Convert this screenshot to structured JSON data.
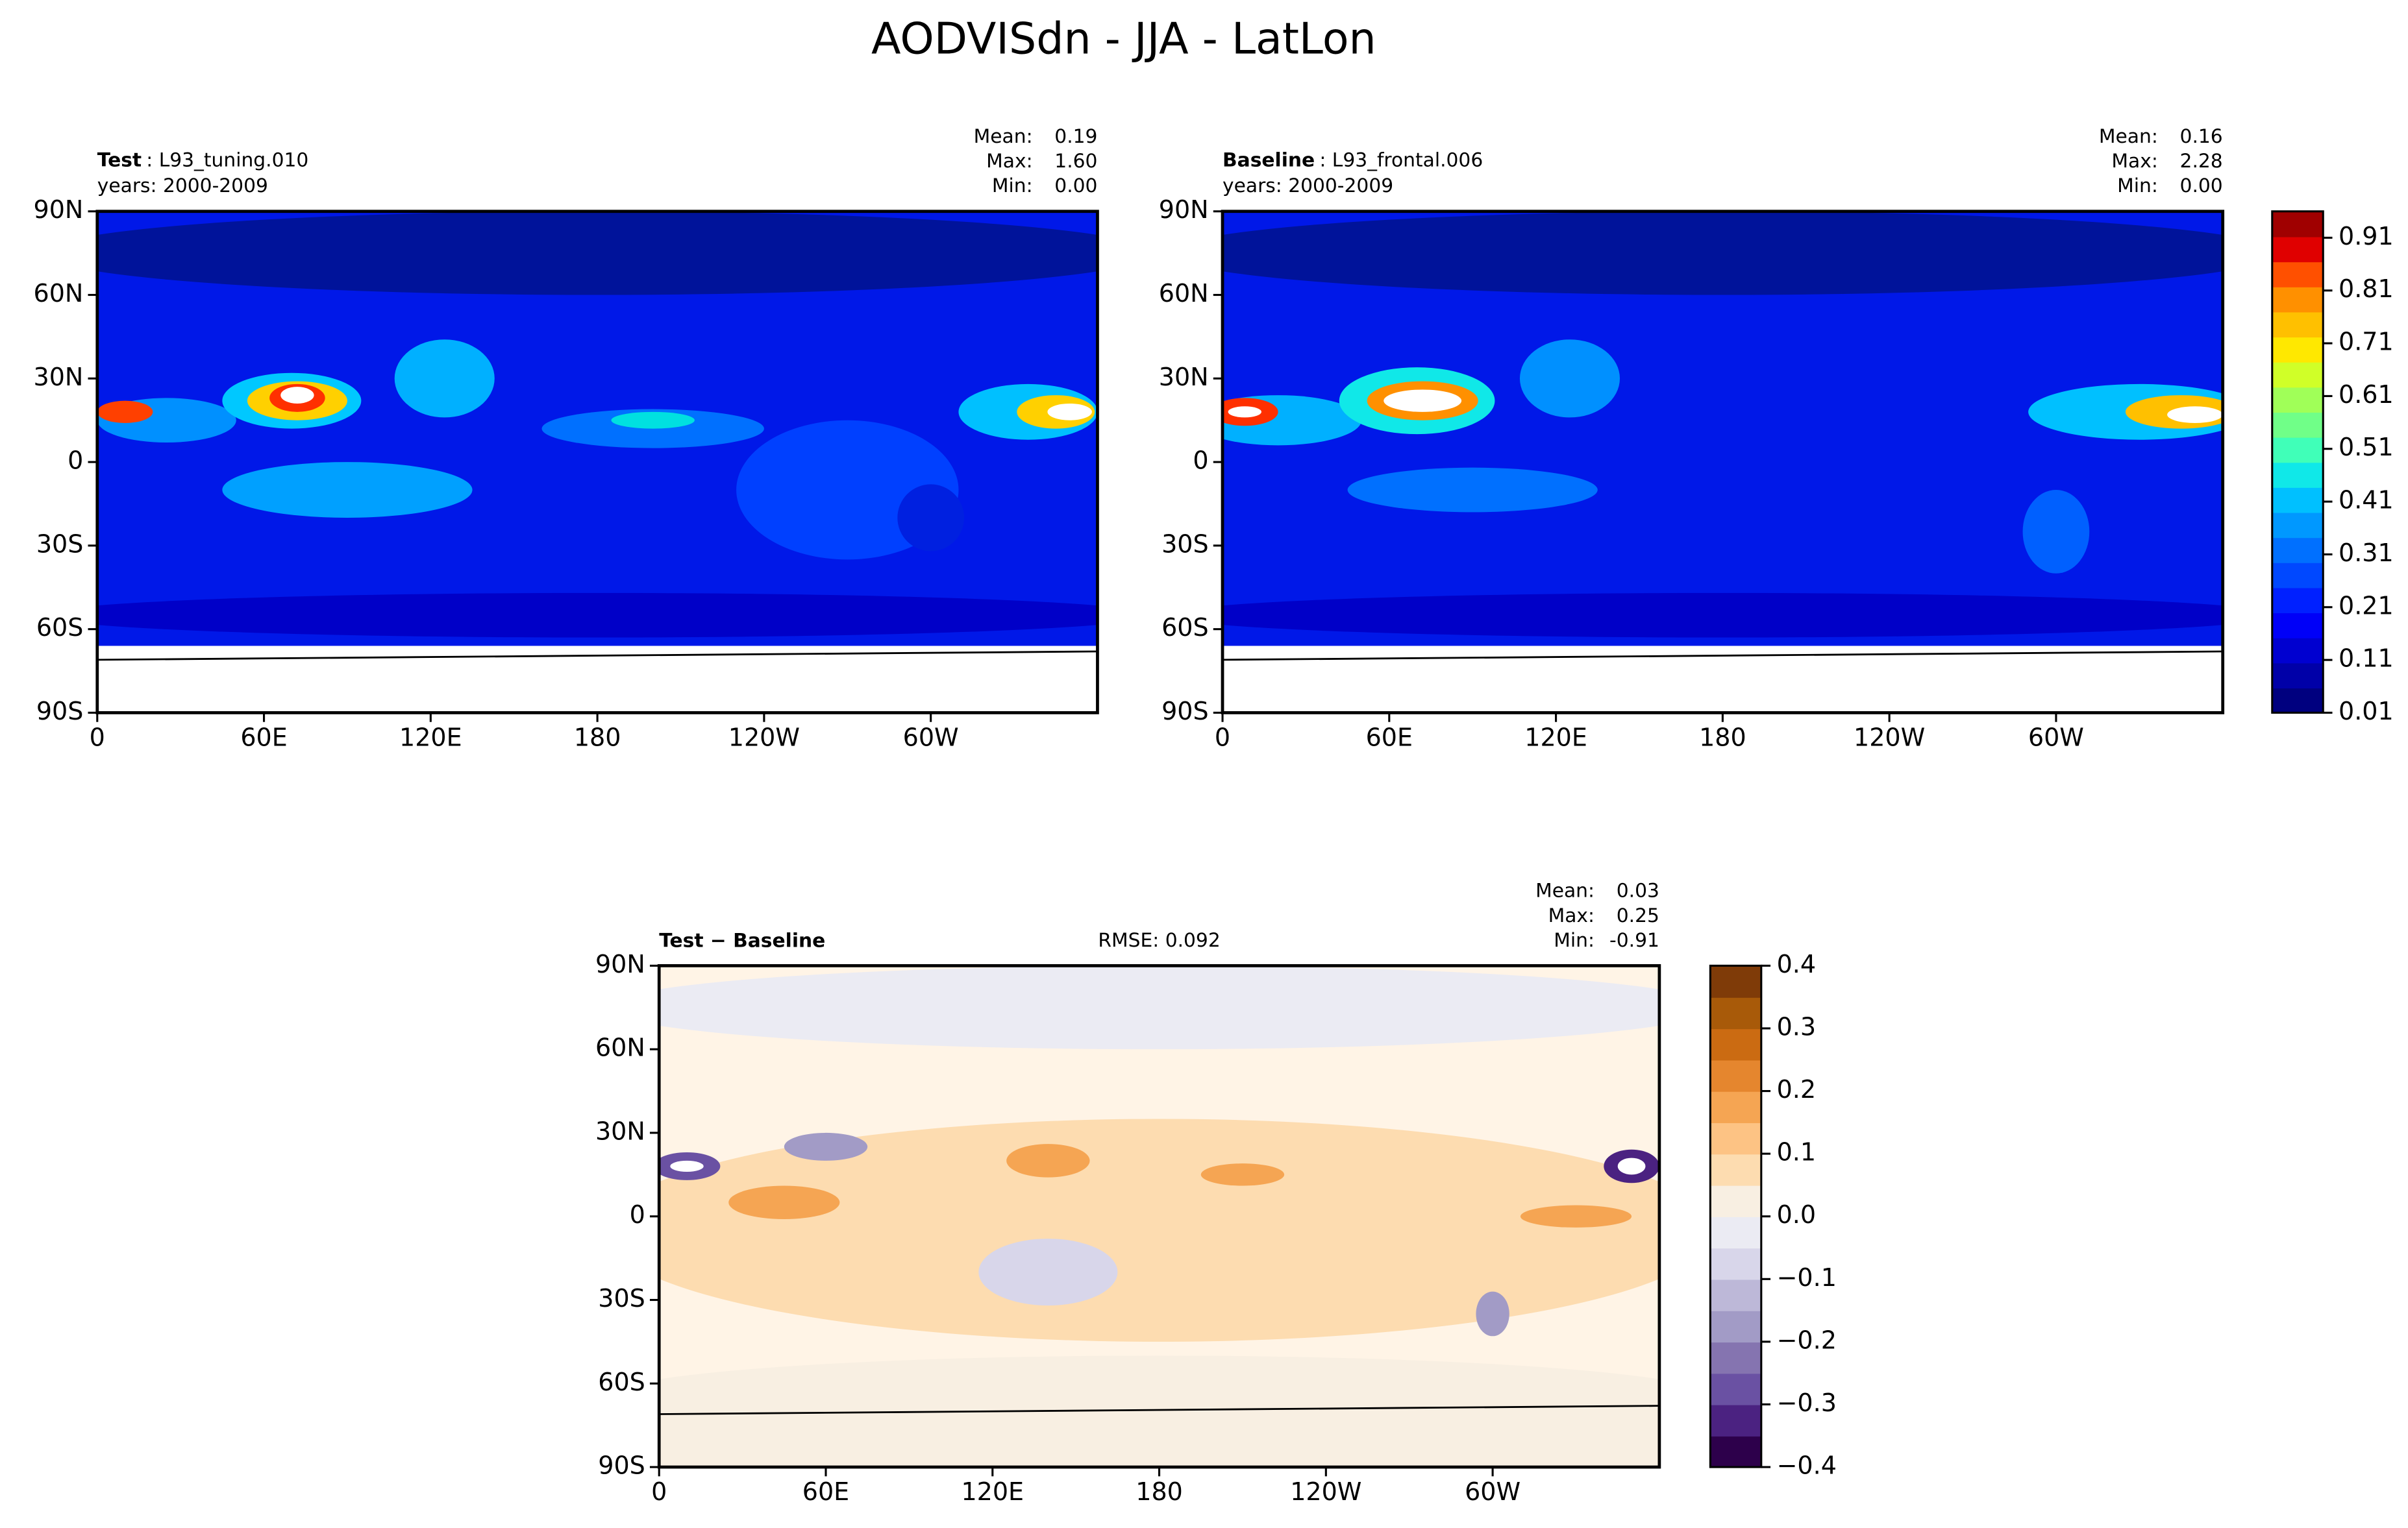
{
  "title": "AODVISdn - JJA - LatLon",
  "map_axes": {
    "xlim": [
      0,
      360
    ],
    "ylim": [
      -90,
      90
    ],
    "xticks": [
      0,
      {
        "value": 60,
        "label": "60E"
      },
      {
        "value": 120,
        "label": "120E"
      },
      180,
      {
        "value": 240,
        "label": "120W"
      },
      {
        "value": 300,
        "label": "60W"
      }
    ],
    "yticks": [
      {
        "value": 90,
        "label": "90N"
      },
      {
        "value": 60,
        "label": "60N"
      },
      {
        "value": 30,
        "label": "30N"
      },
      0,
      {
        "value": -30,
        "label": "30S"
      },
      {
        "value": -60,
        "label": "60S"
      },
      {
        "value": -90,
        "label": "90S"
      }
    ]
  },
  "panels": [
    {
      "name_bold": "Test",
      "name": ": L93_tuning.010",
      "years": "years: 2000-2009",
      "stats": [
        {
          "label": "Mean:",
          "value": "0.19"
        },
        {
          "label": "Max:",
          "value": "1.60"
        },
        {
          "label": "Min:",
          "value": "0.00"
        }
      ]
    },
    {
      "name_bold": "Baseline",
      "name": ": L93_frontal.006",
      "years": "years: 2000-2009",
      "stats": [
        {
          "label": "Mean:",
          "value": "0.16"
        },
        {
          "label": "Max:",
          "value": "2.28"
        },
        {
          "label": "Min:",
          "value": "0.00"
        }
      ]
    },
    {
      "name_bold": "Test − Baseline",
      "rmse": "RMSE: 0.092",
      "stats": [
        {
          "label": "Mean:",
          "value": "0.03"
        },
        {
          "label": "Max:",
          "value": "0.25"
        },
        {
          "label": "Min:",
          "value": "-0.91"
        }
      ]
    }
  ],
  "colorbars": [
    {
      "clim": [
        0.01,
        0.96
      ],
      "colors": [
        "#00007f",
        "#0000a8",
        "#0000d0",
        "#0000f8",
        "#0020ff",
        "#0048ff",
        "#0070ff",
        "#0098ff",
        "#00c0ff",
        "#10e8e8",
        "#40ffb8",
        "#70ff88",
        "#a0ff58",
        "#d0ff28",
        "#ffe800",
        "#ffc000",
        "#ff9000",
        "#ff5000",
        "#e00000",
        "#a00000"
      ],
      "ticks": [
        0.01,
        0.11,
        0.21,
        0.31,
        0.41,
        0.51,
        0.61,
        0.71,
        0.81,
        0.91
      ]
    },
    {
      "clim": [
        -0.4,
        0.4
      ],
      "colors": [
        "#2d004b",
        "#4b2281",
        "#6a51a3",
        "#8574b0",
        "#a29bc6",
        "#bdb8d8",
        "#d8d6ea",
        "#ebebf3",
        "#f8efe2",
        "#fddcb0",
        "#fdc384",
        "#f5a553",
        "#e5862e",
        "#cb6b12",
        "#a85a09",
        "#7f3b08"
      ],
      "ticks": [
        {
          "value": 0.4,
          "label": "0.4"
        },
        {
          "value": 0.3,
          "label": "0.3"
        },
        {
          "value": 0.2,
          "label": "0.2"
        },
        {
          "value": 0.1,
          "label": "0.1"
        },
        {
          "value": 0,
          "label": "0.0"
        },
        {
          "value": -0.1,
          "label": "−0.1"
        },
        {
          "value": -0.2,
          "label": "−0.2"
        },
        {
          "value": -0.3,
          "label": "−0.3"
        },
        {
          "value": -0.4,
          "label": "−0.4"
        }
      ]
    }
  ]
}
